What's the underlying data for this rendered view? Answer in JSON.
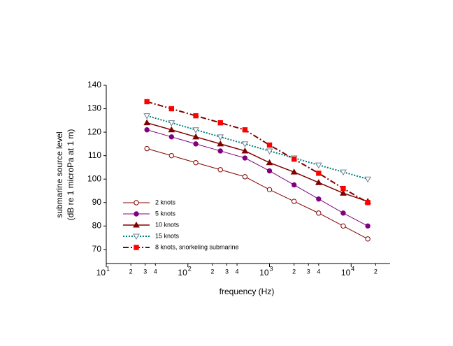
{
  "chart_data": {
    "type": "line",
    "x_label": "frequency (Hz)",
    "y_label": [
      "submarine source level",
      "(dB re 1 microPa at 1 m)"
    ],
    "x": [
      31.5,
      63,
      125,
      250,
      500,
      1000,
      2000,
      4000,
      8000,
      16000
    ],
    "x_log": true,
    "xlim": [
      10,
      30000
    ],
    "xticks": [
      {
        "value": 10,
        "label": "10",
        "exponent": "1"
      },
      {
        "value": 100,
        "label": "10",
        "exponent": "2"
      },
      {
        "value": 1000,
        "label": "10",
        "exponent": "3"
      },
      {
        "value": 10000,
        "label": "10",
        "exponent": "4"
      }
    ],
    "xminor_ticks": [
      {
        "value": 20,
        "label": "2"
      },
      {
        "value": 30,
        "label": "3"
      },
      {
        "value": 40,
        "label": "4"
      },
      {
        "value": 200,
        "label": "2"
      },
      {
        "value": 300,
        "label": "3"
      },
      {
        "value": 400,
        "label": "4"
      },
      {
        "value": 2000,
        "label": "2"
      },
      {
        "value": 3000,
        "label": "3"
      },
      {
        "value": 4000,
        "label": "4"
      },
      {
        "value": 20000,
        "label": "2"
      }
    ],
    "ylim": [
      64,
      140
    ],
    "yticks": [
      70,
      80,
      90,
      100,
      110,
      120,
      130,
      140
    ],
    "legend": "lower left",
    "series": [
      {
        "name": "2 knots",
        "color": "#800000",
        "marker": "circle-open",
        "dash": "solid",
        "width": 1,
        "values": [
          113,
          110,
          107,
          104,
          101,
          95.5,
          90.5,
          85.5,
          80,
          74.5
        ]
      },
      {
        "name": "5 knots",
        "color": "#800080",
        "marker": "circle",
        "dash": "solid",
        "width": 1,
        "values": [
          121,
          118,
          115,
          112,
          109,
          103.5,
          97.5,
          91.5,
          85.5,
          80
        ]
      },
      {
        "name": "10 knots",
        "color": "#800000",
        "marker": "triangle",
        "dash": "solid",
        "width": 1.5,
        "values": [
          124,
          121,
          118,
          115,
          112,
          107,
          103,
          98.5,
          94,
          90.5
        ]
      },
      {
        "name": "15 knots",
        "color": "#008080",
        "marker": "triangle-down-open",
        "dash": "dotted",
        "width": 2,
        "values": [
          127,
          124,
          121,
          118,
          115,
          112,
          109,
          106,
          103,
          100
        ]
      },
      {
        "name": "8 knots, snorkeling submarine",
        "color": "#800000",
        "marker_color": "#ff0000",
        "marker": "square",
        "dash": "dashdot",
        "width": 2,
        "values": [
          133,
          130,
          127,
          124,
          121,
          114.5,
          108.5,
          102.5,
          96,
          90
        ]
      }
    ]
  }
}
